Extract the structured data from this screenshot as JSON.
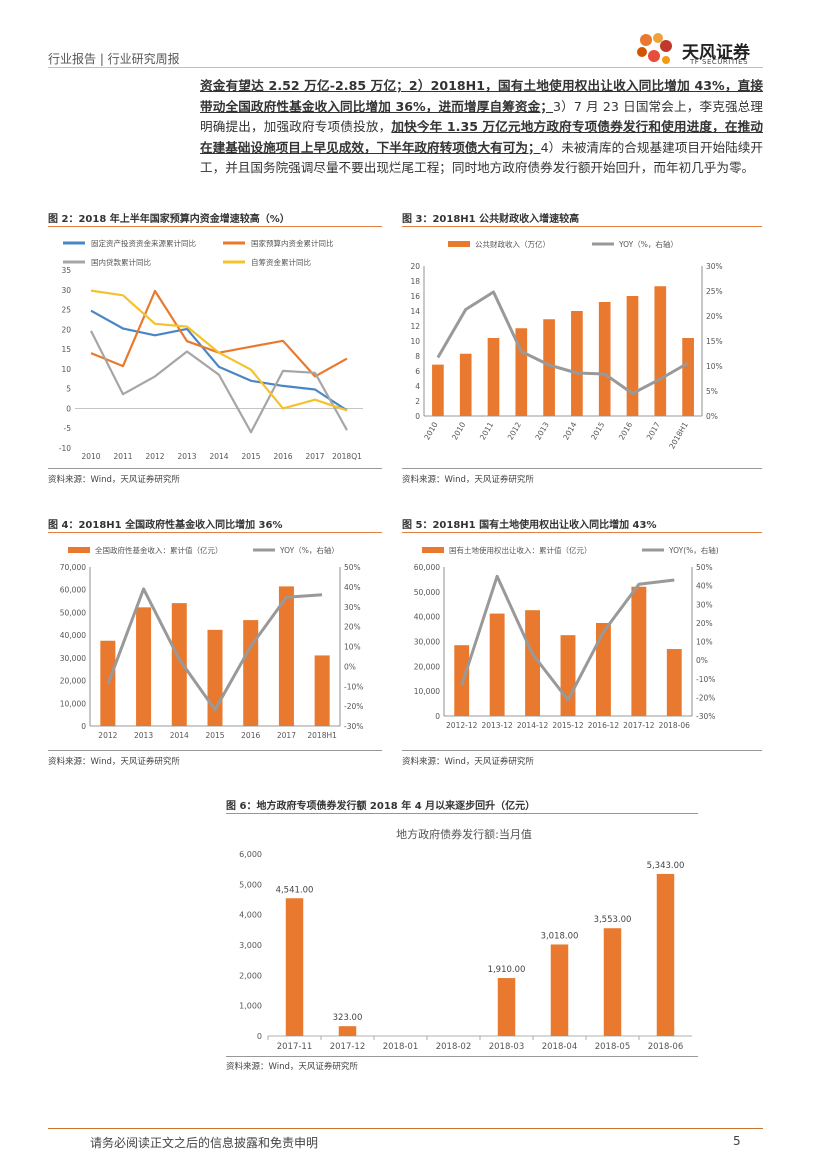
{
  "header": {
    "left": "行业报告 | 行业研究周报",
    "brand": "天风证券",
    "brand_sub": "TF SECURITIES"
  },
  "paragraph": [
    {
      "t": "资金有望达 2.52 万亿-2.85 万亿；2）2018H1，国有土地使用权出让收入同比增加 43%，直接带动全国政府性基金收入同比增加 36%，进而增厚自筹资金；",
      "b": true
    },
    {
      "t": "3）7 月 23 日国常会上，李克强总理明确提出，加强政府专项债投放，",
      "b": false
    },
    {
      "t": "加快今年 1.35 万亿元地方政府专项债券发行和使用进度，在推动在建基础设施项目上早见成效，下半年政府转项债大有可为；",
      "b": true
    },
    {
      "t": "4）未被清库的合规基建项目开始陆续开工，并且国务院强调尽量不要出现烂尾工程；同时地方政府债券发行额开始回升，而年初几乎为零。",
      "b": false
    }
  ],
  "footer": {
    "disclaimer": "请务必阅读正文之后的信息披露和免责申明",
    "page": "5"
  },
  "colors": {
    "orange": "#e8792e",
    "gray": "#999999",
    "blue": "#4a86c5",
    "yellow": "#f5c12c",
    "rule": "#e4803e"
  },
  "chart_data": [
    {
      "id": "fig2",
      "type": "line",
      "title": "图 2：2018 年上半年国家预算内资金增速较高（%）",
      "source": "资料来源：Wind，天风证券研究所",
      "categories": [
        "2010",
        "2011",
        "2012",
        "2013",
        "2014",
        "2015",
        "2016",
        "2017",
        "2018Q1"
      ],
      "ylim": [
        -10,
        35
      ],
      "yticks": [
        -10,
        -5,
        0,
        5,
        10,
        15,
        20,
        25,
        30,
        35
      ],
      "series": [
        {
          "name": "固定资产投资资金来源累计同比",
          "color": "#4a86c5",
          "values": [
            24.7,
            20.2,
            18.5,
            20.1,
            10.5,
            7.0,
            5.7,
            4.8,
            -0.5
          ]
        },
        {
          "name": "国家预算内资金累计同比",
          "color": "#e8792e",
          "values": [
            14.0,
            10.7,
            29.7,
            17.0,
            14.1,
            15.6,
            17.1,
            8.1,
            12.6
          ]
        },
        {
          "name": "国内贷款累计同比",
          "color": "#a6a6a6",
          "values": [
            19.6,
            3.6,
            8.1,
            14.4,
            8.5,
            -6.0,
            9.5,
            9.0,
            -5.5
          ]
        },
        {
          "name": "自筹资金累计同比",
          "color": "#f5c12c",
          "values": [
            29.8,
            28.6,
            21.4,
            20.7,
            14.1,
            9.8,
            0.0,
            2.2,
            -0.5
          ]
        }
      ]
    },
    {
      "id": "fig3",
      "type": "bar",
      "title": "图 3：2018H1 公共财政收入增速较高",
      "source": "资料来源：Wind，天风证券研究所",
      "categories": [
        "2010",
        "2010",
        "2011",
        "2012",
        "2013",
        "2014",
        "2015",
        "2016",
        "2017",
        "2018H1"
      ],
      "ylim": [
        0,
        20
      ],
      "yticks": [
        0,
        2,
        4,
        6,
        8,
        10,
        12,
        14,
        16,
        18,
        20
      ],
      "y2lim": [
        0,
        30
      ],
      "y2ticks": [
        "0%",
        "5%",
        "10%",
        "15%",
        "20%",
        "25%",
        "30%"
      ],
      "series": [
        {
          "name": "公共财政收入（万亿）",
          "kind": "bar",
          "color": "#e8792e",
          "values": [
            6.85,
            8.3,
            10.4,
            11.7,
            12.9,
            14.0,
            15.2,
            16.0,
            17.3,
            10.4
          ]
        },
        {
          "name": "YOY（%，右轴）",
          "kind": "line",
          "color": "#999999",
          "values": [
            11.7,
            21.3,
            24.8,
            12.9,
            10.2,
            8.6,
            8.4,
            4.5,
            7.4,
            10.6
          ]
        }
      ]
    },
    {
      "id": "fig4",
      "type": "bar",
      "title": "图 4：2018H1 全国政府性基金收入同比增加 36%",
      "source": "资料来源：Wind，天风证券研究所",
      "categories": [
        "2012",
        "2013",
        "2014",
        "2015",
        "2016",
        "2017",
        "2018H1"
      ],
      "ylim": [
        0,
        70000
      ],
      "yticks": [
        "0",
        "10,000",
        "20,000",
        "30,000",
        "40,000",
        "50,000",
        "60,000",
        "70,000"
      ],
      "y2lim": [
        -30,
        50
      ],
      "y2ticks": [
        "-30%",
        "-20%",
        "-10%",
        "0%",
        "10%",
        "20%",
        "30%",
        "40%",
        "50%"
      ],
      "series": [
        {
          "name": "全国政府性基金收入：累计值（亿元）",
          "kind": "bar",
          "color": "#e8792e",
          "values": [
            37535,
            52239,
            54093,
            42338,
            46619,
            61462,
            31067
          ]
        },
        {
          "name": "YOY（%，右轴）",
          "kind": "line",
          "color": "#999999",
          "values": [
            -9.0,
            39.0,
            3.5,
            -21.8,
            10.0,
            34.8,
            36.0
          ]
        }
      ]
    },
    {
      "id": "fig5",
      "type": "bar",
      "title": "图 5：2018H1 国有土地使用权出让收入同比增加 43%",
      "source": "资料来源：Wind，天风证券研究所",
      "categories": [
        "2012-12",
        "2013-12",
        "2014-12",
        "2015-12",
        "2016-12",
        "2017-12",
        "2018-06"
      ],
      "ylim": [
        0,
        60000
      ],
      "yticks": [
        "0",
        "10,000",
        "20,000",
        "30,000",
        "40,000",
        "50,000",
        "60,000"
      ],
      "y2lim": [
        -30,
        50
      ],
      "y2ticks": [
        "-30%",
        "-20%",
        "-10%",
        "0%",
        "10%",
        "20%",
        "30%",
        "40%",
        "50%"
      ],
      "series": [
        {
          "name": "国有土地使用权出让收入：累计值（亿元）",
          "kind": "bar",
          "color": "#e8792e",
          "values": [
            28517,
            41250,
            42606,
            32547,
            37457,
            52059,
            26961
          ]
        },
        {
          "name": "YOY(%，右轴)",
          "kind": "line",
          "color": "#999999",
          "values": [
            -13.5,
            45.0,
            3.2,
            -21.4,
            15.1,
            40.7,
            43.0
          ]
        }
      ]
    },
    {
      "id": "fig6",
      "type": "bar",
      "title": "图 6：地方政府专项债券发行额 2018 年 4 月以来逐步回升（亿元）",
      "inner_title": "地方政府债券发行额:当月值",
      "source": "资料来源：Wind，天风证券研究所",
      "categories": [
        "2017-11",
        "2017-12",
        "2018-01",
        "2018-02",
        "2018-03",
        "2018-04",
        "2018-05",
        "2018-06"
      ],
      "ylim": [
        0,
        6000
      ],
      "yticks": [
        "0",
        "1,000",
        "2,000",
        "3,000",
        "4,000",
        "5,000",
        "6,000"
      ],
      "values": [
        4541.0,
        323.0,
        0,
        0,
        1910.0,
        3018.0,
        3553.0,
        5343.0
      ],
      "labels": [
        "4,541.00",
        "323.00",
        "",
        "",
        "1,910.00",
        "3,018.00",
        "3,553.00",
        "5,343.00"
      ],
      "color": "#e8792e"
    }
  ]
}
